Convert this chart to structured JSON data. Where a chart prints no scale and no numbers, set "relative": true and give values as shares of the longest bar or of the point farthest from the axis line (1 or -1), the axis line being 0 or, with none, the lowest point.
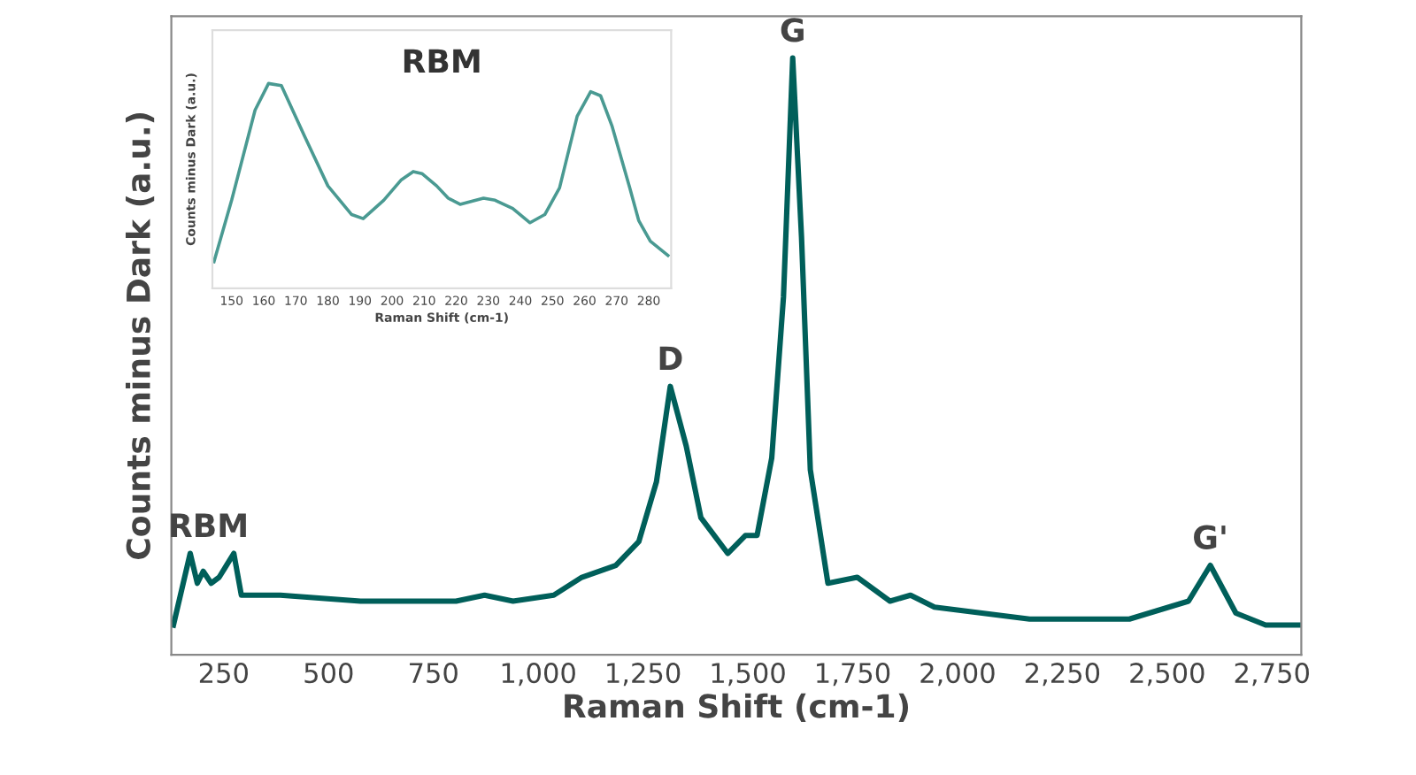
{
  "chart_data": [
    {
      "type": "line",
      "relative": true,
      "xlabel": "Raman Shift (cm-1)",
      "ylabel": "Counts minus Dark (a.u.)",
      "xlim": [
        125,
        2820
      ],
      "xticks": [
        {
          "value": 250,
          "label": "250"
        },
        {
          "value": 500,
          "label": "500"
        },
        {
          "value": 750,
          "label": "750"
        },
        {
          "value": 1000,
          "label": "1,000"
        },
        {
          "value": 1250,
          "label": "1,250"
        },
        {
          "value": 1500,
          "label": "1,500"
        },
        {
          "value": 1750,
          "label": "1,750"
        },
        {
          "value": 2000,
          "label": "2,000"
        },
        {
          "value": 2250,
          "label": "2,250"
        },
        {
          "value": 2500,
          "label": "2,500"
        },
        {
          "value": 2750,
          "label": "2,750"
        }
      ],
      "grid": false,
      "legend": false,
      "marker": "none",
      "line_style": "solid",
      "tick_labels": "x",
      "series": [
        {
          "color": "#005f5a",
          "x": [
            130,
            170,
            187,
            201,
            220,
            239,
            274,
            292,
            385,
            576,
            804,
            872,
            940,
            1037,
            1104,
            1185,
            1240,
            1282,
            1315,
            1353,
            1388,
            1452,
            1494,
            1522,
            1557,
            1585,
            1607,
            1628,
            1649,
            1691,
            1761,
            1839,
            1888,
            1945,
            2172,
            2410,
            2551,
            2603,
            2664,
            2735,
            2820
          ],
          "values": [
            0.05,
            0.17,
            0.12,
            0.14,
            0.12,
            0.13,
            0.17,
            0.1,
            0.1,
            0.09,
            0.09,
            0.1,
            0.09,
            0.1,
            0.13,
            0.15,
            0.19,
            0.29,
            0.45,
            0.35,
            0.23,
            0.17,
            0.2,
            0.2,
            0.33,
            0.6,
            1,
            0.7,
            0.31,
            0.12,
            0.13,
            0.09,
            0.1,
            0.08,
            0.06,
            0.06,
            0.09,
            0.15,
            0.07,
            0.05,
            0.05
          ]
        }
      ],
      "annotations": [
        {
          "text": "RBM",
          "x": 170,
          "y": 0.17
        },
        {
          "text": "D",
          "x": 1315,
          "y": 0.45
        },
        {
          "text": "G",
          "x": 1607,
          "y": 1
        },
        {
          "text": "G'",
          "x": 2603,
          "y": 0.15
        }
      ]
    },
    {
      "type": "line",
      "relative": true,
      "title": "RBM",
      "xlabel": "Raman Shift (cm-1)",
      "ylabel": "Counts minus Dark (a.u.)",
      "xlim": [
        144,
        287
      ],
      "xticks": [
        150,
        160,
        170,
        180,
        190,
        200,
        210,
        220,
        230,
        240,
        250,
        260,
        270,
        280
      ],
      "grid": false,
      "legend": false,
      "marker": "none",
      "line_style": "solid",
      "tick_labels": "x",
      "series": [
        {
          "color": "#4a9a92",
          "x": [
            144.5,
            150,
            157.3,
            161.5,
            165.5,
            172.8,
            180,
            187.4,
            191,
            197.4,
            202.9,
            206.6,
            209.3,
            213.9,
            217.5,
            221.2,
            228.5,
            232.1,
            237.6,
            243,
            247.6,
            252.2,
            257.7,
            261.9,
            265,
            268.6,
            274.1,
            276.9,
            280.5,
            286
          ],
          "values": [
            0.13,
            0.43,
            0.87,
            1,
            0.99,
            0.74,
            0.5,
            0.36,
            0.34,
            0.43,
            0.53,
            0.57,
            0.56,
            0.5,
            0.44,
            0.41,
            0.44,
            0.43,
            0.39,
            0.32,
            0.36,
            0.49,
            0.84,
            0.96,
            0.94,
            0.79,
            0.49,
            0.33,
            0.23,
            0.16
          ]
        }
      ]
    }
  ]
}
